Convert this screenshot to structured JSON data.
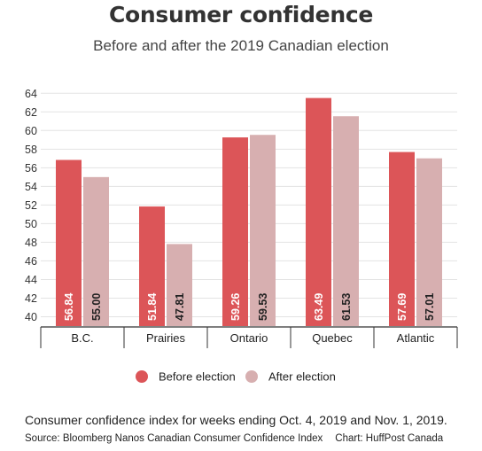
{
  "chart_data": {
    "type": "bar",
    "title": "Consumer confidence",
    "subtitle": "Before and after the 2019 Canadian election",
    "categories": [
      "B.C.",
      "Prairies",
      "Ontario",
      "Quebec",
      "Atlantic"
    ],
    "series": [
      {
        "name": "Before election",
        "values": [
          56.84,
          51.84,
          59.26,
          63.49,
          57.69
        ],
        "color": "#dc5558"
      },
      {
        "name": "After election",
        "values": [
          55.0,
          47.81,
          59.53,
          61.53,
          57.01
        ],
        "color": "#d7afb0"
      }
    ],
    "value_labels": [
      [
        "56.84",
        "51.84",
        "59.26",
        "63.49",
        "57.69"
      ],
      [
        "55.00",
        "47.81",
        "59.53",
        "61.53",
        "57.01"
      ]
    ],
    "yticks": [
      "40",
      "42",
      "44",
      "46",
      "48",
      "50",
      "52",
      "54",
      "56",
      "58",
      "60",
      "62",
      "64"
    ],
    "ylim": [
      39,
      64.5
    ],
    "grid": true,
    "legend": "bottom-center"
  },
  "footnote": "Consumer confidence index for weeks ending Oct. 4, 2019 and Nov. 1, 2019.",
  "source": "Source: Bloomberg Nanos Canadian Consumer Confidence Index",
  "credit": "Chart: HuffPost Canada"
}
